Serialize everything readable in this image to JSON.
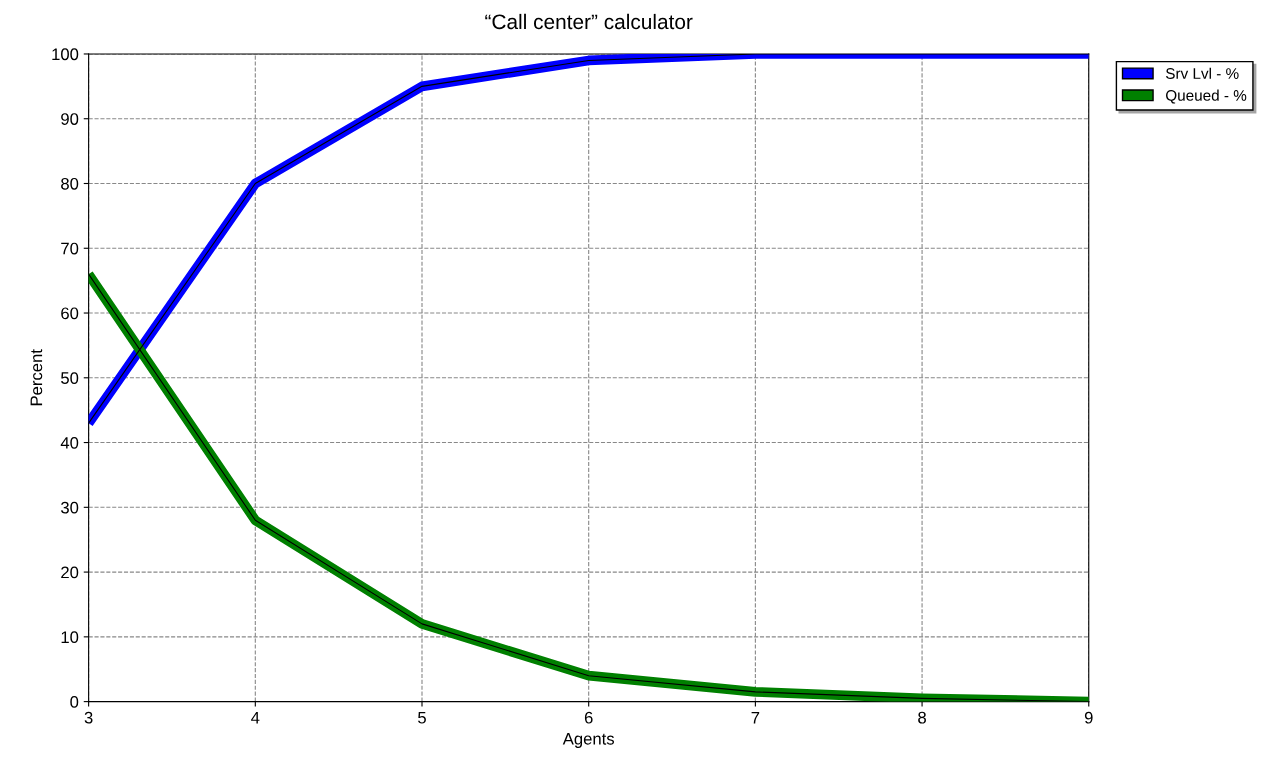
{
  "chart_data": {
    "type": "line",
    "title": "“Call center” calculator",
    "xlabel": "Agents",
    "ylabel": "Percent",
    "x": [
      3,
      4,
      5,
      6,
      7,
      8,
      9
    ],
    "series": [
      {
        "name": "Srv Lvl - %",
        "color": "#0000ff",
        "values": [
          43,
          80,
          95,
          99,
          100,
          100,
          100
        ]
      },
      {
        "name": "Queued - %",
        "color": "#008000",
        "values": [
          66,
          28,
          12,
          4,
          1.5,
          0.5,
          0
        ]
      }
    ],
    "xlim": [
      3,
      9
    ],
    "xticks": [
      3,
      4,
      5,
      6,
      7,
      8,
      9
    ],
    "ylim": [
      0,
      100
    ],
    "yticks": [
      0,
      10,
      20,
      30,
      40,
      50,
      60,
      70,
      80,
      90,
      100
    ],
    "grid": true,
    "legend": "top right",
    "marker": "none",
    "line_style": "solid"
  }
}
